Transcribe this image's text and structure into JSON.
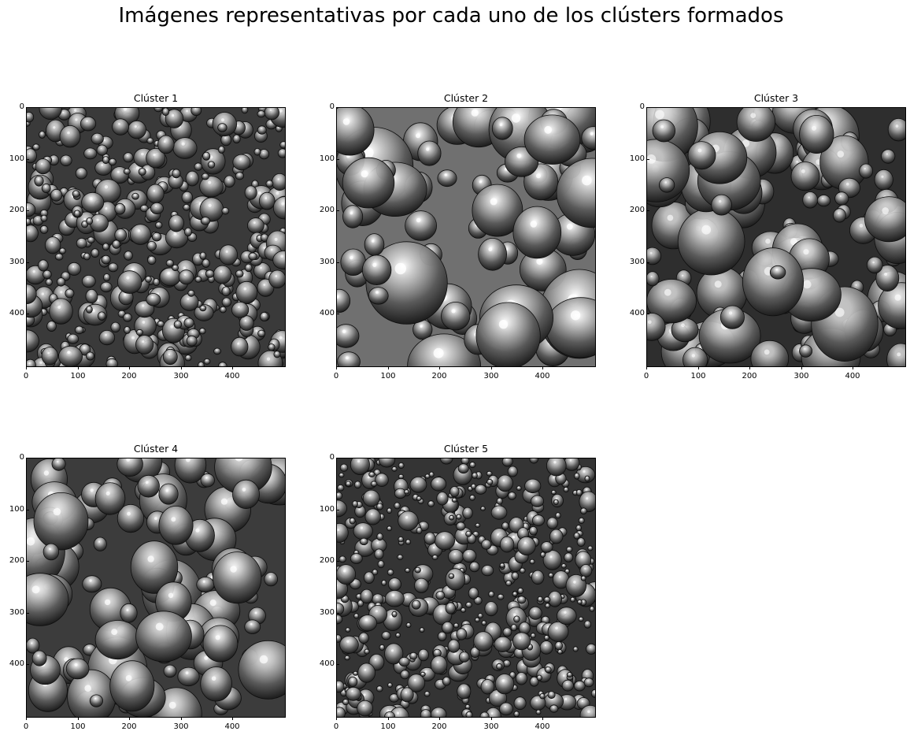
{
  "figure": {
    "title": "Imágenes representativas por cada uno de los clústers formados"
  },
  "axis_ticks": [
    "0",
    "100",
    "200",
    "300",
    "400"
  ],
  "panels": [
    {
      "title": "Clúster 1",
      "image": "fine-bubble-froth-texture",
      "tone": "dark-gray"
    },
    {
      "title": "Clúster 2",
      "image": "large-bright-bubble-froth-texture",
      "tone": "bright"
    },
    {
      "title": "Clúster 3",
      "image": "large-dark-bubble-froth-texture",
      "tone": "dark-gray"
    },
    {
      "title": "Clúster 4",
      "image": "medium-bubble-froth-texture",
      "tone": "mid-gray"
    },
    {
      "title": "Clúster 5",
      "image": "very-fine-bubble-froth-texture",
      "tone": "dark-gray"
    }
  ]
}
